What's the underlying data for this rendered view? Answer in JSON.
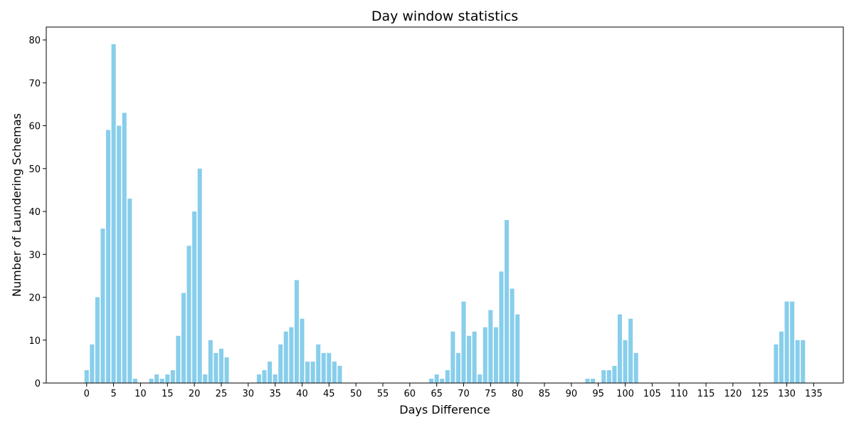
{
  "colors": {
    "bar": "#87ceeb",
    "axis": "#000000",
    "background": "#ffffff"
  },
  "chart_data": {
    "type": "bar",
    "title": "Day window statistics",
    "xlabel": "Days Difference",
    "ylabel": "Number of Laundering Schemas",
    "xlim": [
      -7.5,
      140.5
    ],
    "ylim": [
      0,
      83
    ],
    "x_ticks": [
      0,
      5,
      10,
      15,
      20,
      25,
      30,
      35,
      40,
      45,
      50,
      55,
      60,
      65,
      70,
      75,
      80,
      85,
      90,
      95,
      100,
      105,
      110,
      115,
      120,
      125,
      130,
      135
    ],
    "y_ticks": [
      0,
      10,
      20,
      30,
      40,
      50,
      60,
      70,
      80
    ],
    "grid": false,
    "x": [
      0,
      1,
      2,
      3,
      4,
      5,
      6,
      7,
      8,
      9,
      12,
      13,
      14,
      15,
      16,
      17,
      18,
      19,
      20,
      21,
      22,
      23,
      24,
      25,
      26,
      32,
      33,
      34,
      35,
      36,
      37,
      38,
      39,
      40,
      41,
      42,
      43,
      44,
      45,
      46,
      47,
      64,
      65,
      66,
      67,
      68,
      69,
      70,
      71,
      72,
      73,
      74,
      75,
      76,
      77,
      78,
      79,
      80,
      93,
      94,
      96,
      97,
      98,
      99,
      100,
      101,
      102,
      128,
      129,
      130,
      131,
      132,
      133
    ],
    "values": [
      3,
      9,
      20,
      36,
      59,
      79,
      60,
      63,
      43,
      1,
      1,
      2,
      1,
      2,
      3,
      11,
      21,
      32,
      40,
      50,
      2,
      10,
      7,
      8,
      6,
      2,
      3,
      5,
      2,
      9,
      12,
      13,
      24,
      15,
      5,
      5,
      9,
      7,
      7,
      5,
      4,
      1,
      2,
      1,
      3,
      12,
      7,
      19,
      11,
      12,
      2,
      13,
      17,
      13,
      26,
      38,
      22,
      16,
      1,
      1,
      3,
      3,
      4,
      16,
      10,
      15,
      7,
      9,
      12,
      19,
      19,
      10,
      10
    ]
  }
}
